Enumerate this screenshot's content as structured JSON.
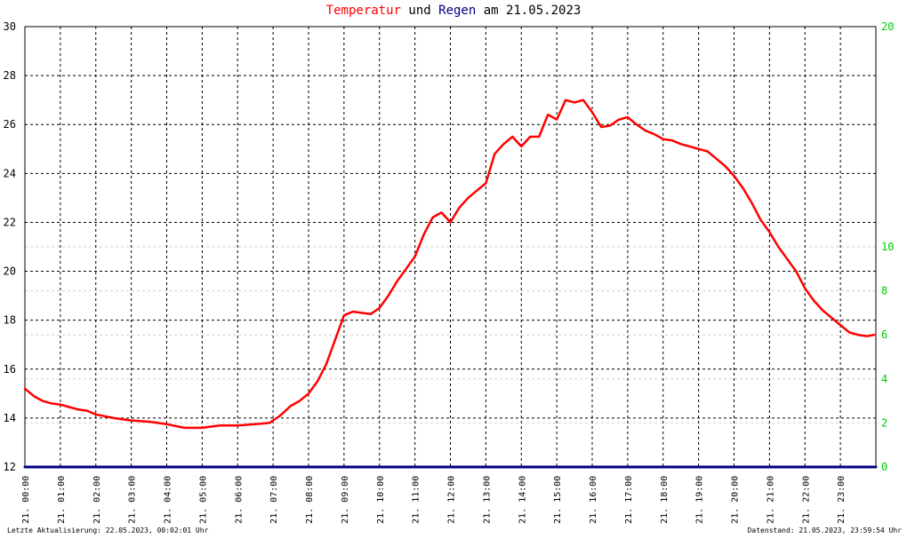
{
  "title": {
    "temp_word": "Temperatur",
    "and_word": "und",
    "rain_word": "Regen",
    "date_text": "am 21.05.2023",
    "temp_color": "#ff0000",
    "rain_color": "#000080"
  },
  "footer": {
    "left": "Letzte Aktualisierung: 22.05.2023, 00:02:01 Uhr",
    "right": "Datenstand: 21.05.2023, 23:59:54 Uhr"
  },
  "chart_data": {
    "type": "line",
    "title": "Temperatur und Regen am 21.05.2023",
    "x_ticks": [
      "21. 00:00",
      "21. 01:00",
      "21. 02:00",
      "21. 03:00",
      "21. 04:00",
      "21. 05:00",
      "21. 06:00",
      "21. 07:00",
      "21. 08:00",
      "21. 09:00",
      "21. 10:00",
      "21. 11:00",
      "21. 12:00",
      "21. 13:00",
      "21. 14:00",
      "21. 15:00",
      "21. 16:00",
      "21. 17:00",
      "21. 18:00",
      "21. 19:00",
      "21. 20:00",
      "21. 21:00",
      "21. 22:00",
      "21. 23:00"
    ],
    "xlim": [
      0,
      24
    ],
    "y_left": {
      "lim": [
        12,
        30
      ],
      "ticks": [
        12,
        14,
        16,
        18,
        20,
        22,
        24,
        26,
        28,
        30
      ],
      "color": "#000000"
    },
    "y_right": {
      "lim": [
        0,
        20
      ],
      "ticks": [
        0,
        2,
        4,
        6,
        8,
        10,
        20
      ],
      "color": "#00cc00"
    },
    "grid": true,
    "series": [
      {
        "name": "Temperatur",
        "axis": "left",
        "color": "#ff0000",
        "x": [
          0,
          0.25,
          0.5,
          0.75,
          1.0,
          1.25,
          1.5,
          1.75,
          2.0,
          2.5,
          3.0,
          3.5,
          4.0,
          4.5,
          4.75,
          5.0,
          5.25,
          5.5,
          6.0,
          6.5,
          6.9,
          7.2,
          7.5,
          7.75,
          8.0,
          8.25,
          8.5,
          8.75,
          9.0,
          9.25,
          9.5,
          9.75,
          10.0,
          10.25,
          10.5,
          10.75,
          11.0,
          11.25,
          11.5,
          11.75,
          12.0,
          12.25,
          12.5,
          12.75,
          13.0,
          13.25,
          13.5,
          13.75,
          14.0,
          14.25,
          14.5,
          14.75,
          15.0,
          15.25,
          15.5,
          15.75,
          16.0,
          16.25,
          16.5,
          16.75,
          17.0,
          17.25,
          17.5,
          17.75,
          18.0,
          18.25,
          18.5,
          18.75,
          19.0,
          19.25,
          19.5,
          19.75,
          20.0,
          20.25,
          20.5,
          20.75,
          21.0,
          21.25,
          21.5,
          21.75,
          22.0,
          22.25,
          22.5,
          22.75,
          23.0,
          23.25,
          23.5,
          23.75,
          23.95
        ],
        "y": [
          15.2,
          14.9,
          14.7,
          14.6,
          14.55,
          14.45,
          14.35,
          14.3,
          14.15,
          14.0,
          13.9,
          13.85,
          13.75,
          13.6,
          13.6,
          13.6,
          13.65,
          13.7,
          13.7,
          13.75,
          13.8,
          14.1,
          14.5,
          14.7,
          15.0,
          15.5,
          16.2,
          17.2,
          18.2,
          18.35,
          18.3,
          18.25,
          18.5,
          19.0,
          19.6,
          20.1,
          20.6,
          21.5,
          22.2,
          22.4,
          22.0,
          22.6,
          23.0,
          23.3,
          23.6,
          24.8,
          25.2,
          25.5,
          25.1,
          25.5,
          25.5,
          26.4,
          26.2,
          27.0,
          26.9,
          27.0,
          26.5,
          25.9,
          25.95,
          26.2,
          26.3,
          26.0,
          25.75,
          25.6,
          25.4,
          25.35,
          25.2,
          25.1,
          25.0,
          24.9,
          24.6,
          24.3,
          23.9,
          23.4,
          22.8,
          22.1,
          21.6,
          21.0,
          20.5,
          20.0,
          19.3,
          18.8,
          18.4,
          18.1,
          17.8,
          17.5,
          17.4,
          17.35,
          17.4
        ]
      },
      {
        "name": "Regen",
        "axis": "right",
        "color": "#000080",
        "x": [
          0,
          24
        ],
        "y": [
          0,
          0
        ]
      }
    ]
  }
}
